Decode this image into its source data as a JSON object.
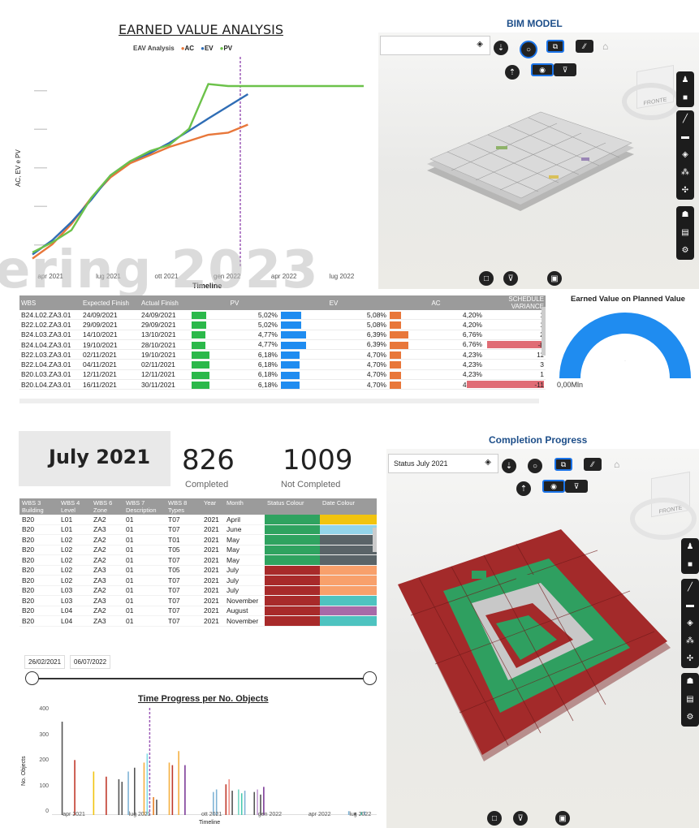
{
  "eva": {
    "title": "EARNED VALUE ANALYSIS",
    "legend_title": "EAV Analysis",
    "legend": [
      {
        "label": "AC",
        "color": "#e8773a"
      },
      {
        "label": "EV",
        "color": "#2f6db5"
      },
      {
        "label": "PV",
        "color": "#6cc24a"
      }
    ],
    "ylabel": "AC, EV e PV",
    "xlabel": "Timeline",
    "x_ticks": [
      "apr 2021",
      "lug 2021",
      "ott 2021",
      "gen 2022",
      "apr 2022",
      "lug 2022"
    ]
  },
  "chart_data": [
    {
      "type": "line",
      "title": "EARNED VALUE ANALYSIS",
      "xlabel": "Timeline",
      "ylabel": "AC, EV e PV",
      "x": [
        "2021-03-01",
        "2021-04-01",
        "2021-05-01",
        "2021-06-01",
        "2021-07-01",
        "2021-08-01",
        "2021-09-01",
        "2021-10-01",
        "2021-11-01",
        "2021-12-01",
        "2022-01-01",
        "2022-02-01",
        "2022-03-01",
        "2022-04-01",
        "2022-05-01",
        "2022-06-01",
        "2022-07-01",
        "2022-08-01"
      ],
      "marker_date": "2022-01-20",
      "ylim": [
        0,
        1
      ],
      "series": [
        {
          "name": "AC",
          "color": "#e8773a",
          "values": [
            0.03,
            0.1,
            0.2,
            0.33,
            0.43,
            0.5,
            0.54,
            0.58,
            0.61,
            0.64,
            0.65,
            0.69,
            null,
            null,
            null,
            null,
            null,
            null
          ]
        },
        {
          "name": "EV",
          "color": "#2f6db5",
          "values": [
            0.05,
            0.12,
            0.21,
            0.32,
            0.44,
            0.51,
            0.55,
            0.6,
            0.66,
            0.72,
            0.78,
            0.84,
            null,
            null,
            null,
            null,
            null,
            null
          ]
        },
        {
          "name": "PV",
          "color": "#6cc24a",
          "values": [
            0.06,
            0.11,
            0.17,
            0.33,
            0.44,
            0.51,
            0.56,
            0.59,
            0.67,
            0.89,
            0.88,
            0.88,
            0.88,
            0.88,
            0.88,
            0.88,
            0.88,
            0.88
          ]
        }
      ]
    },
    {
      "type": "bar",
      "title": "Time Progress per No. Objects",
      "xlabel": "Timeline",
      "ylabel": "No. Objects",
      "ylim": [
        0,
        400
      ],
      "y_ticks": [
        "400",
        "300",
        "200",
        "100",
        "0"
      ],
      "x_ticks": [
        "apr 2021",
        "lug 2021",
        "ott 2021",
        "gen 2022",
        "apr 2022",
        "lug 2022"
      ],
      "bars": [
        {
          "t": 0.02,
          "v": 365,
          "c": "#555555"
        },
        {
          "t": 0.06,
          "v": 215,
          "c": "#c0392b"
        },
        {
          "t": 0.12,
          "v": 170,
          "c": "#f1c40f"
        },
        {
          "t": 0.16,
          "v": 150,
          "c": "#c0392b"
        },
        {
          "t": 0.2,
          "v": 140,
          "c": "#555555"
        },
        {
          "t": 0.21,
          "v": 130,
          "c": "#555555"
        },
        {
          "t": 0.23,
          "v": 170,
          "c": "#7fb3d5"
        },
        {
          "t": 0.25,
          "v": 185,
          "c": "#555555"
        },
        {
          "t": 0.28,
          "v": 205,
          "c": "#f5b041"
        },
        {
          "t": 0.29,
          "v": 240,
          "c": "#7fdbe6"
        },
        {
          "t": 0.31,
          "v": 70,
          "c": "#e67e22"
        },
        {
          "t": 0.32,
          "v": 60,
          "c": "#555555"
        },
        {
          "t": 0.36,
          "v": 205,
          "c": "#f5b041"
        },
        {
          "t": 0.37,
          "v": 195,
          "c": "#c0392b"
        },
        {
          "t": 0.39,
          "v": 250,
          "c": "#f5b041"
        },
        {
          "t": 0.41,
          "v": 195,
          "c": "#7d3c98"
        },
        {
          "t": 0.5,
          "v": 90,
          "c": "#7fb3d5"
        },
        {
          "t": 0.51,
          "v": 100,
          "c": "#7fb3d5"
        },
        {
          "t": 0.54,
          "v": 120,
          "c": "#c0392b"
        },
        {
          "t": 0.55,
          "v": 140,
          "c": "#f1948a"
        },
        {
          "t": 0.56,
          "v": 95,
          "c": "#555555"
        },
        {
          "t": 0.58,
          "v": 100,
          "c": "#76d7c4"
        },
        {
          "t": 0.59,
          "v": 85,
          "c": "#48c9b0"
        },
        {
          "t": 0.6,
          "v": 95,
          "c": "#7fb3d5"
        },
        {
          "t": 0.63,
          "v": 90,
          "c": "#555555"
        },
        {
          "t": 0.64,
          "v": 100,
          "c": "#c39bd3"
        },
        {
          "t": 0.65,
          "v": 80,
          "c": "#555555"
        },
        {
          "t": 0.66,
          "v": 110,
          "c": "#7d3c98"
        },
        {
          "t": 0.93,
          "v": 15,
          "c": "#7fb3d5"
        },
        {
          "t": 0.95,
          "v": 10,
          "c": "#555555"
        },
        {
          "t": 0.97,
          "v": 12,
          "c": "#48c9b0"
        },
        {
          "t": 0.98,
          "v": 14,
          "c": "#7fb3d5"
        }
      ],
      "marker": 0.3
    },
    {
      "type": "gauge",
      "title": "Earned Value on Planned Value",
      "min_label": "0,00Mln",
      "fill_fraction": 1.0,
      "color": "#1f8cf0"
    }
  ],
  "bim1": {
    "title": "BIM MODEL",
    "search_value": "",
    "cube_label": "FRONTE"
  },
  "ev_table": {
    "columns": [
      "WBS",
      "Expected Finish",
      "Actual Finish",
      "PV",
      "EV",
      "AC",
      "SCHEDULE VARIANCE"
    ],
    "rows": [
      {
        "wbs": "B24.L02.ZA3.01",
        "exp": "24/09/2021",
        "act": "24/09/2021",
        "pv": "5,02%",
        "pvb": 0.63,
        "ev": "5,08%",
        "evb": 0.62,
        "ac": "4,20%",
        "acb": 0.45,
        "sv": "1",
        "neg": false
      },
      {
        "wbs": "B22.L02.ZA3.01",
        "exp": "29/09/2021",
        "act": "29/09/2021",
        "pv": "5,02%",
        "pvb": 0.63,
        "ev": "5,08%",
        "evb": 0.62,
        "ac": "4,20%",
        "acb": 0.45,
        "sv": "1",
        "neg": false
      },
      {
        "wbs": "B24.L03.ZA3.01",
        "exp": "14/10/2021",
        "act": "13/10/2021",
        "pv": "4,77%",
        "pvb": 0.6,
        "ev": "6,39%",
        "evb": 0.78,
        "ac": "6,76%",
        "acb": 0.72,
        "sv": "2",
        "neg": false
      },
      {
        "wbs": "B24.L04.ZA3.01",
        "exp": "19/10/2021",
        "act": "28/10/2021",
        "pv": "4,77%",
        "pvb": 0.6,
        "ev": "6,39%",
        "evb": 0.78,
        "ac": "6,76%",
        "acb": 0.72,
        "sv": "-8",
        "neg": true,
        "svb": 0.7
      },
      {
        "wbs": "B22.L03.ZA3.01",
        "exp": "02/11/2021",
        "act": "19/10/2021",
        "pv": "6,18%",
        "pvb": 0.78,
        "ev": "4,70%",
        "evb": 0.58,
        "ac": "4,23%",
        "acb": 0.45,
        "sv": "11",
        "neg": false
      },
      {
        "wbs": "B22.L04.ZA3.01",
        "exp": "04/11/2021",
        "act": "02/11/2021",
        "pv": "6,18%",
        "pvb": 0.78,
        "ev": "4,70%",
        "evb": 0.58,
        "ac": "4,23%",
        "acb": 0.45,
        "sv": "3",
        "neg": false
      },
      {
        "wbs": "B20.L03.ZA3.01",
        "exp": "12/11/2021",
        "act": "12/11/2021",
        "pv": "6,18%",
        "pvb": 0.78,
        "ev": "4,70%",
        "evb": 0.58,
        "ac": "4,23%",
        "acb": 0.45,
        "sv": "1",
        "neg": false
      },
      {
        "wbs": "B20.L04.ZA3.01",
        "exp": "16/11/2021",
        "act": "30/11/2021",
        "pv": "6,18%",
        "pvb": 0.78,
        "ev": "4,70%",
        "evb": 0.58,
        "ac": "4,23%",
        "acb": 0.45,
        "sv": "-11",
        "neg": true,
        "svb": 0.95
      }
    ]
  },
  "status": {
    "month": "July 2021",
    "completed_value": "826",
    "completed_label": "Completed",
    "not_completed_value": "1009",
    "not_completed_label": "Not Completed"
  },
  "status_table": {
    "columns": [
      "WBS 3 Building",
      "WBS 4 Level",
      "WBS 6 Zone",
      "WBS 7 Description",
      "WBS 8 Types",
      "Year",
      "Month",
      "Status Colour",
      "Date Colour"
    ],
    "rows": [
      {
        "b": "B20",
        "l": "L01",
        "z": "ZA2",
        "d": "01",
        "t": "T07",
        "y": "2021",
        "m": "April",
        "sc": "#2fa360",
        "dc": "#f1c40f"
      },
      {
        "b": "B20",
        "l": "L01",
        "z": "ZA3",
        "d": "01",
        "t": "T07",
        "y": "2021",
        "m": "June",
        "sc": "#2fa360",
        "dc": "#93d5ea"
      },
      {
        "b": "B20",
        "l": "L02",
        "z": "ZA2",
        "d": "01",
        "t": "T01",
        "y": "2021",
        "m": "May",
        "sc": "#2fa360",
        "dc": "#5a6468"
      },
      {
        "b": "B20",
        "l": "L02",
        "z": "ZA2",
        "d": "01",
        "t": "T05",
        "y": "2021",
        "m": "May",
        "sc": "#2fa360",
        "dc": "#5a6468"
      },
      {
        "b": "B20",
        "l": "L02",
        "z": "ZA2",
        "d": "01",
        "t": "T07",
        "y": "2021",
        "m": "May",
        "sc": "#2fa360",
        "dc": "#5a6468"
      },
      {
        "b": "B20",
        "l": "L02",
        "z": "ZA3",
        "d": "01",
        "t": "T05",
        "y": "2021",
        "m": "July",
        "sc": "#a82a2a",
        "dc": "#f8a06b"
      },
      {
        "b": "B20",
        "l": "L02",
        "z": "ZA3",
        "d": "01",
        "t": "T07",
        "y": "2021",
        "m": "July",
        "sc": "#a82a2a",
        "dc": "#f8a06b"
      },
      {
        "b": "B20",
        "l": "L03",
        "z": "ZA2",
        "d": "01",
        "t": "T07",
        "y": "2021",
        "m": "July",
        "sc": "#a82a2a",
        "dc": "#f8a06b"
      },
      {
        "b": "B20",
        "l": "L03",
        "z": "ZA3",
        "d": "01",
        "t": "T07",
        "y": "2021",
        "m": "November",
        "sc": "#a82a2a",
        "dc": "#4ec3c0"
      },
      {
        "b": "B20",
        "l": "L04",
        "z": "ZA2",
        "d": "01",
        "t": "T07",
        "y": "2021",
        "m": "August",
        "sc": "#a82a2a",
        "dc": "#a86aa8"
      },
      {
        "b": "B20",
        "l": "L04",
        "z": "ZA3",
        "d": "01",
        "t": "T07",
        "y": "2021",
        "m": "November",
        "sc": "#a82a2a",
        "dc": "#4ec3c0"
      }
    ]
  },
  "slider": {
    "start": "26/02/2021",
    "end": "06/07/2022"
  },
  "bim2": {
    "title": "Completion Progress",
    "search_value": "Status July 2021",
    "cube_label": "FRONTE"
  },
  "watermark": "ering 2023"
}
